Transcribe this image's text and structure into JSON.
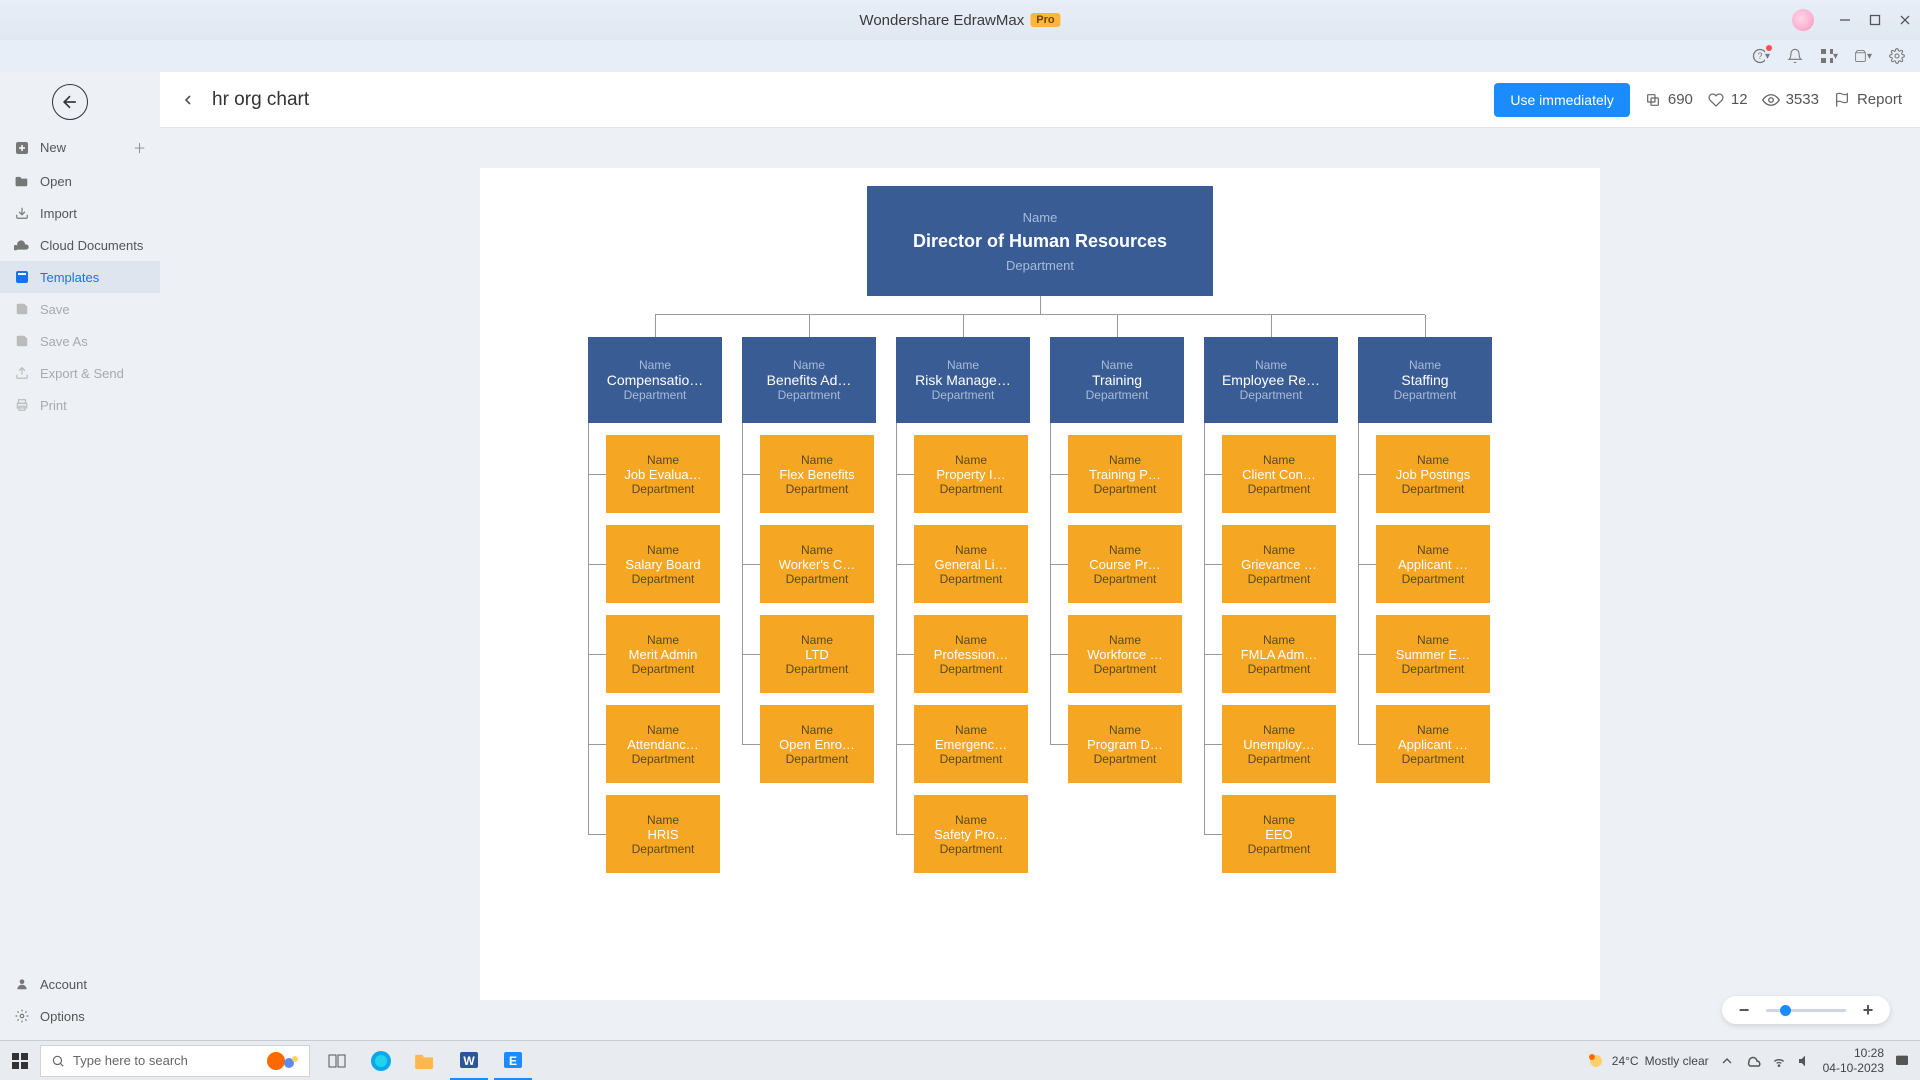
{
  "titlebar": {
    "app": "Wondershare EdrawMax",
    "badge": "Pro"
  },
  "sidebar": {
    "items": [
      {
        "label": "New",
        "icon": "plus-square"
      },
      {
        "label": "Open",
        "icon": "folder"
      },
      {
        "label": "Import",
        "icon": "import"
      },
      {
        "label": "Cloud Documents",
        "icon": "cloud"
      },
      {
        "label": "Templates",
        "icon": "template"
      },
      {
        "label": "Save",
        "icon": "save"
      },
      {
        "label": "Save As",
        "icon": "save"
      },
      {
        "label": "Export & Send",
        "icon": "export"
      },
      {
        "label": "Print",
        "icon": "print"
      }
    ],
    "bottom": [
      {
        "label": "Account",
        "icon": "user"
      },
      {
        "label": "Options",
        "icon": "gear"
      }
    ]
  },
  "header": {
    "title": "hr org chart",
    "use_btn": "Use immediately",
    "copies": "690",
    "likes": "12",
    "views": "3533",
    "report": "Report"
  },
  "org": {
    "root": {
      "name": "Name",
      "title": "Director of Human Resources",
      "dept": "Department"
    },
    "colors": {
      "dept_bg": "#3a5c95",
      "child_bg": "#f5a623",
      "line": "#999999"
    },
    "columns": [
      {
        "title": "Compensatio…",
        "children": [
          "Job Evalua…",
          "Salary Board",
          "Merit Admin",
          "Attendanc…",
          "HRIS"
        ]
      },
      {
        "title": "Benefits Ad…",
        "children": [
          "Flex Benefits",
          "Worker's C…",
          "LTD",
          "Open Enro…"
        ]
      },
      {
        "title": "Risk Manage…",
        "children": [
          "Property I…",
          "General Li…",
          "Profession…",
          "Emergenc…",
          "Safety Pro…"
        ]
      },
      {
        "title": "Training",
        "children": [
          "Training P…",
          "Course Pr…",
          "Workforce …",
          "Program D…"
        ]
      },
      {
        "title": "Employee Re…",
        "children": [
          "Client Con…",
          "Grievance …",
          "FMLA Adm…",
          "Unemploy…",
          "EEO"
        ]
      },
      {
        "title": "Staffing",
        "children": [
          "Job Postings",
          "Applicant …",
          "Summer E…",
          "Applicant …"
        ]
      }
    ],
    "child_name": "Name",
    "child_dept": "Department",
    "dept_name": "Name",
    "dept_dept": "Department"
  },
  "taskbar": {
    "search_placeholder": "Type here to search",
    "weather_temp": "24°C",
    "weather_text": "Mostly clear",
    "time": "10:28",
    "date": "04-10-2023"
  }
}
